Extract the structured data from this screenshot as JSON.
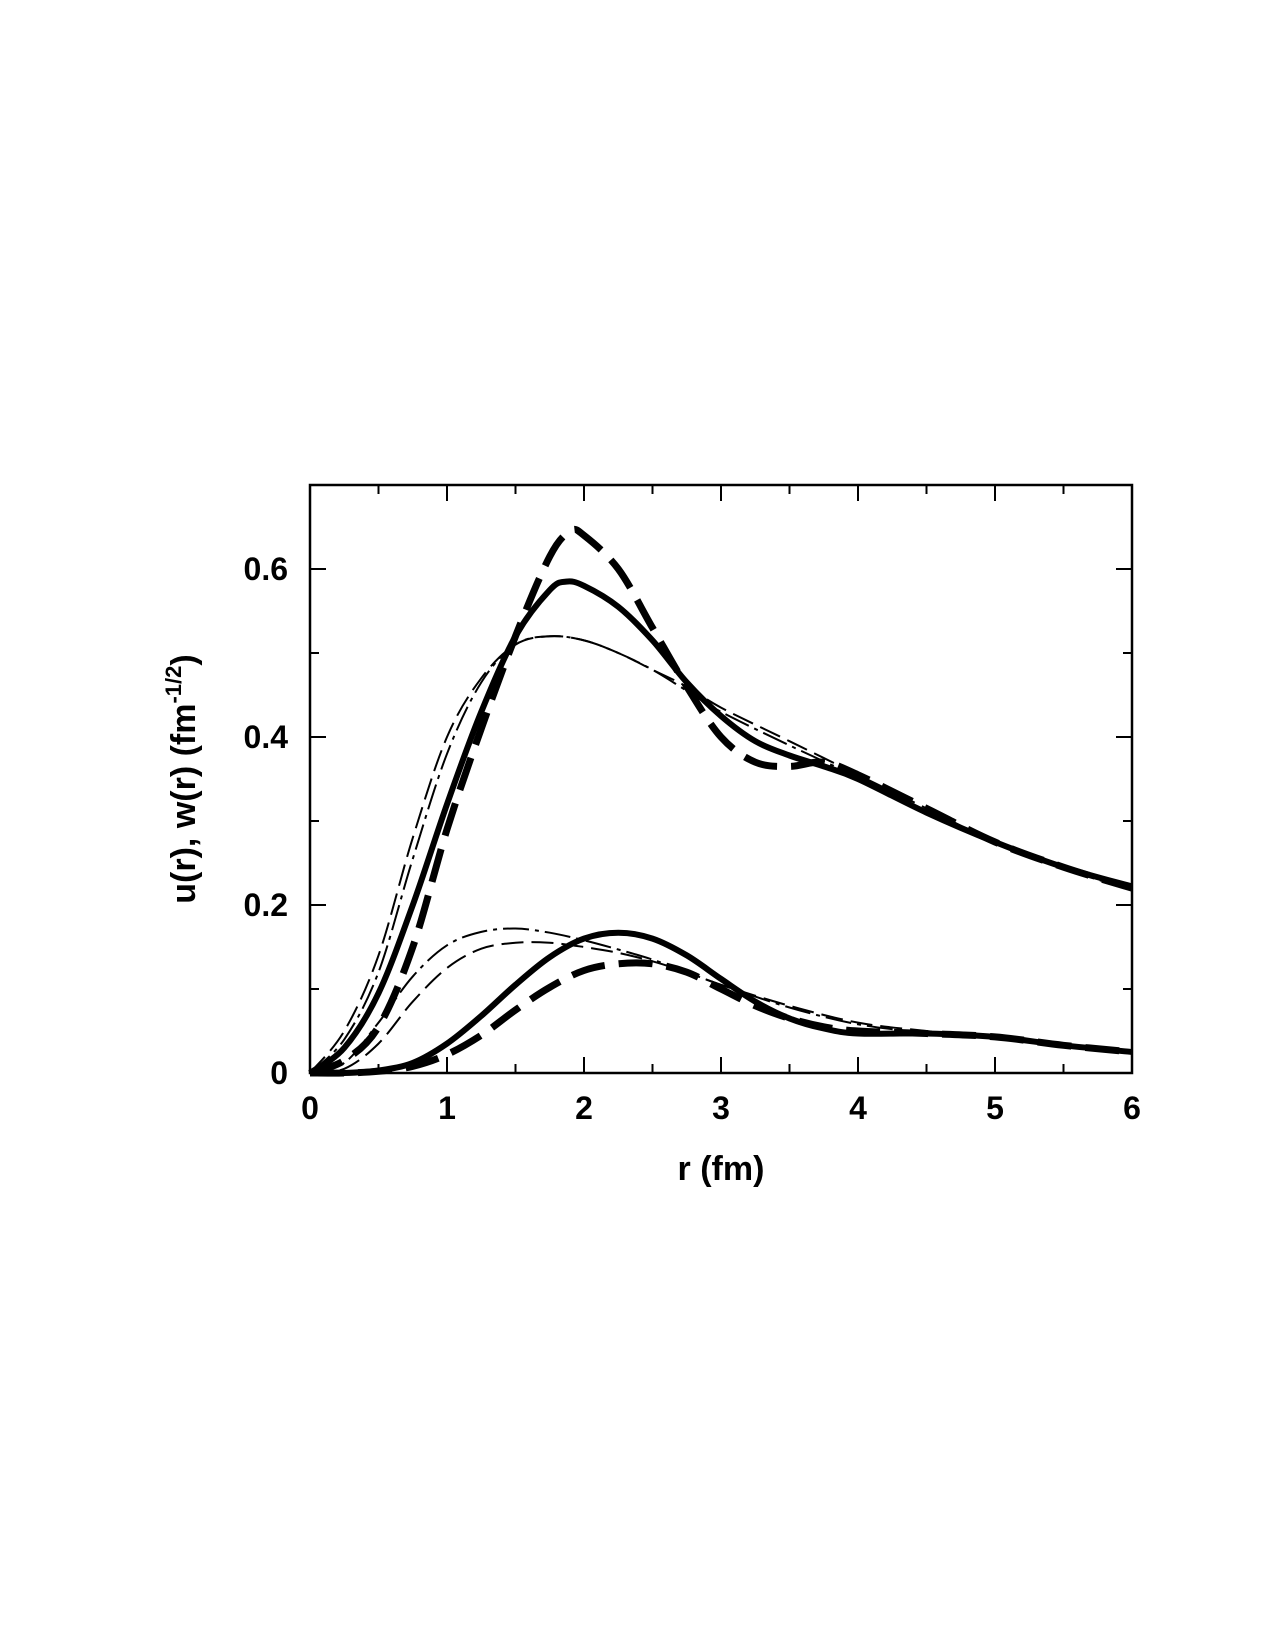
{
  "chart_data": {
    "type": "line",
    "title": "",
    "xlabel": "r (fm)",
    "ylabel_parts": [
      "u(r), w(r) (fm",
      "-1/2",
      ")"
    ],
    "xlim": [
      0,
      6
    ],
    "ylim": [
      0,
      0.7
    ],
    "x_ticks": [
      0,
      1,
      2,
      3,
      4,
      5,
      6
    ],
    "x_tick_labels": [
      "0",
      "1",
      "2",
      "3",
      "4",
      "5",
      "6"
    ],
    "y_ticks": [
      0,
      0.2,
      0.4,
      0.6
    ],
    "y_tick_labels": [
      "0",
      "0.2",
      "0.4",
      "0.6"
    ],
    "grid": false,
    "legend": "none",
    "series": [
      {
        "style": "thick-solid",
        "points": [
          [
            0,
            0
          ],
          [
            0.25,
            0.03
          ],
          [
            0.5,
            0.095
          ],
          [
            0.75,
            0.2
          ],
          [
            1.0,
            0.32
          ],
          [
            1.25,
            0.43
          ],
          [
            1.5,
            0.52
          ],
          [
            1.75,
            0.575
          ],
          [
            1.87,
            0.585
          ],
          [
            2.0,
            0.58
          ],
          [
            2.25,
            0.555
          ],
          [
            2.5,
            0.515
          ],
          [
            2.75,
            0.465
          ],
          [
            3.0,
            0.425
          ],
          [
            3.25,
            0.395
          ],
          [
            3.5,
            0.378
          ],
          [
            3.75,
            0.365
          ],
          [
            4.0,
            0.35
          ],
          [
            4.5,
            0.31
          ],
          [
            5.0,
            0.275
          ],
          [
            5.5,
            0.245
          ],
          [
            6.0,
            0.222
          ]
        ]
      },
      {
        "style": "thick-dashed",
        "points": [
          [
            0,
            0
          ],
          [
            0.25,
            0.015
          ],
          [
            0.5,
            0.055
          ],
          [
            0.75,
            0.15
          ],
          [
            1.0,
            0.29
          ],
          [
            1.25,
            0.41
          ],
          [
            1.5,
            0.52
          ],
          [
            1.75,
            0.615
          ],
          [
            1.9,
            0.645
          ],
          [
            2.0,
            0.64
          ],
          [
            2.25,
            0.6
          ],
          [
            2.5,
            0.53
          ],
          [
            2.75,
            0.46
          ],
          [
            3.0,
            0.4
          ],
          [
            3.25,
            0.37
          ],
          [
            3.5,
            0.365
          ],
          [
            3.75,
            0.37
          ],
          [
            4.0,
            0.355
          ],
          [
            4.5,
            0.315
          ],
          [
            5.0,
            0.275
          ],
          [
            5.5,
            0.245
          ],
          [
            6.0,
            0.22
          ]
        ]
      },
      {
        "style": "thin-dashed",
        "points": [
          [
            0,
            0
          ],
          [
            0.25,
            0.05
          ],
          [
            0.5,
            0.14
          ],
          [
            0.75,
            0.28
          ],
          [
            1.0,
            0.4
          ],
          [
            1.25,
            0.47
          ],
          [
            1.5,
            0.51
          ],
          [
            1.75,
            0.52
          ],
          [
            2.0,
            0.515
          ],
          [
            2.25,
            0.5
          ],
          [
            2.5,
            0.48
          ],
          [
            2.75,
            0.46
          ],
          [
            3.0,
            0.435
          ],
          [
            3.5,
            0.395
          ],
          [
            4.0,
            0.355
          ],
          [
            4.5,
            0.315
          ],
          [
            5.0,
            0.275
          ],
          [
            5.5,
            0.245
          ],
          [
            6.0,
            0.22
          ]
        ]
      },
      {
        "style": "thin-dash-dot",
        "points": [
          [
            0,
            0
          ],
          [
            0.25,
            0.04
          ],
          [
            0.5,
            0.12
          ],
          [
            0.75,
            0.255
          ],
          [
            1.0,
            0.38
          ],
          [
            1.25,
            0.465
          ],
          [
            1.5,
            0.51
          ],
          [
            1.75,
            0.52
          ],
          [
            2.0,
            0.515
          ],
          [
            2.25,
            0.5
          ],
          [
            2.5,
            0.48
          ],
          [
            2.75,
            0.455
          ],
          [
            3.0,
            0.43
          ],
          [
            3.5,
            0.39
          ],
          [
            4.0,
            0.352
          ],
          [
            4.5,
            0.312
          ],
          [
            5.0,
            0.273
          ],
          [
            5.5,
            0.243
          ],
          [
            6.0,
            0.218
          ]
        ]
      },
      {
        "style": "thick-solid",
        "points": [
          [
            0,
            0
          ],
          [
            0.25,
            0.0
          ],
          [
            0.5,
            0.003
          ],
          [
            0.75,
            0.012
          ],
          [
            1.0,
            0.035
          ],
          [
            1.25,
            0.068
          ],
          [
            1.5,
            0.105
          ],
          [
            1.75,
            0.138
          ],
          [
            2.0,
            0.16
          ],
          [
            2.25,
            0.167
          ],
          [
            2.5,
            0.16
          ],
          [
            2.75,
            0.14
          ],
          [
            3.0,
            0.112
          ],
          [
            3.25,
            0.085
          ],
          [
            3.5,
            0.065
          ],
          [
            3.75,
            0.053
          ],
          [
            4.0,
            0.047
          ],
          [
            4.5,
            0.047
          ],
          [
            5.0,
            0.043
          ],
          [
            5.5,
            0.033
          ],
          [
            6.0,
            0.025
          ]
        ]
      },
      {
        "style": "thick-dashed",
        "points": [
          [
            0,
            0
          ],
          [
            0.25,
            0.0
          ],
          [
            0.5,
            0.002
          ],
          [
            0.75,
            0.008
          ],
          [
            1.0,
            0.022
          ],
          [
            1.25,
            0.045
          ],
          [
            1.5,
            0.075
          ],
          [
            1.75,
            0.102
          ],
          [
            2.0,
            0.122
          ],
          [
            2.25,
            0.13
          ],
          [
            2.5,
            0.13
          ],
          [
            2.75,
            0.12
          ],
          [
            3.0,
            0.1
          ],
          [
            3.25,
            0.08
          ],
          [
            3.5,
            0.065
          ],
          [
            3.75,
            0.055
          ],
          [
            4.0,
            0.05
          ],
          [
            4.5,
            0.047
          ],
          [
            5.0,
            0.043
          ],
          [
            5.5,
            0.033
          ],
          [
            6.0,
            0.025
          ]
        ]
      },
      {
        "style": "thin-dashed",
        "points": [
          [
            0,
            0
          ],
          [
            0.25,
            0.005
          ],
          [
            0.5,
            0.035
          ],
          [
            0.75,
            0.085
          ],
          [
            1.0,
            0.125
          ],
          [
            1.25,
            0.148
          ],
          [
            1.5,
            0.155
          ],
          [
            1.75,
            0.155
          ],
          [
            2.0,
            0.15
          ],
          [
            2.25,
            0.143
          ],
          [
            2.5,
            0.133
          ],
          [
            2.75,
            0.12
          ],
          [
            3.0,
            0.105
          ],
          [
            3.5,
            0.08
          ],
          [
            4.0,
            0.06
          ],
          [
            4.5,
            0.05
          ],
          [
            5.0,
            0.042
          ],
          [
            5.5,
            0.033
          ],
          [
            6.0,
            0.025
          ]
        ]
      },
      {
        "style": "thin-dash-dot",
        "points": [
          [
            0,
            0
          ],
          [
            0.25,
            0.012
          ],
          [
            0.5,
            0.06
          ],
          [
            0.75,
            0.115
          ],
          [
            1.0,
            0.152
          ],
          [
            1.25,
            0.168
          ],
          [
            1.5,
            0.172
          ],
          [
            1.75,
            0.167
          ],
          [
            2.0,
            0.158
          ],
          [
            2.25,
            0.147
          ],
          [
            2.5,
            0.135
          ],
          [
            2.75,
            0.12
          ],
          [
            3.0,
            0.105
          ],
          [
            3.5,
            0.078
          ],
          [
            4.0,
            0.058
          ],
          [
            4.5,
            0.048
          ],
          [
            5.0,
            0.041
          ],
          [
            5.5,
            0.032
          ],
          [
            6.0,
            0.024
          ]
        ]
      }
    ]
  }
}
